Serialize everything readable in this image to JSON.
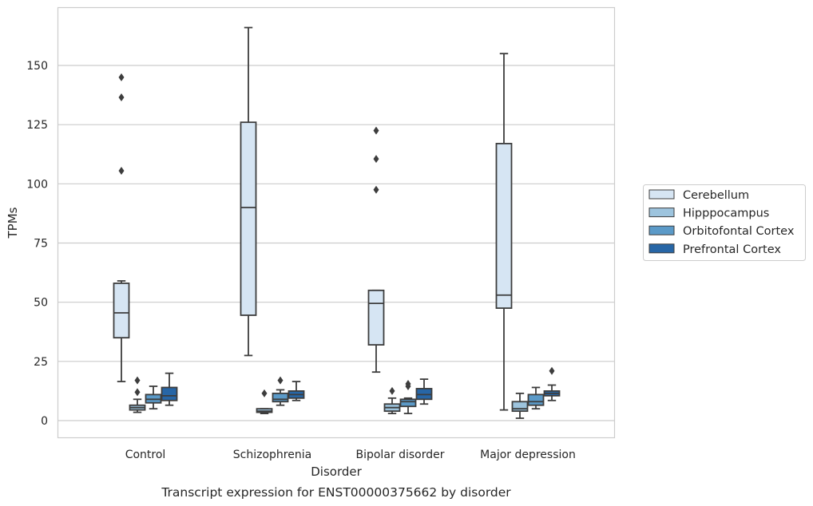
{
  "chart_data": {
    "type": "box",
    "caption": "Transcript expression for ENST00000375662 by disorder",
    "xlabel": "Disorder",
    "ylabel": "TPMs",
    "ylim": [
      -7,
      175
    ],
    "yticks": [
      0,
      25,
      50,
      75,
      100,
      125,
      150
    ],
    "grid": "horizontal",
    "legend_position": "right",
    "categories": [
      "Control",
      "Schizophrenia",
      "Bipolar disorder",
      "Major depression"
    ],
    "series": [
      {
        "name": "Cerebellum",
        "color": "#d6e5f3",
        "boxes": [
          {
            "whisker_low": 16.5,
            "q1": 35,
            "median": 45.5,
            "q3": 58,
            "whisker_high": 59,
            "outliers": [
              105.5,
              136.5,
              145
            ]
          },
          {
            "whisker_low": 27.5,
            "q1": 44.5,
            "median": 90,
            "q3": 126,
            "whisker_high": 166,
            "outliers": []
          },
          {
            "whisker_low": 20.5,
            "q1": 32,
            "median": 49.5,
            "q3": 55,
            "whisker_high": 55,
            "outliers": [
              97.5,
              110.5,
              122.5
            ]
          },
          {
            "whisker_low": 4.5,
            "q1": 47.5,
            "median": 53,
            "q3": 117,
            "whisker_high": 155,
            "outliers": []
          }
        ]
      },
      {
        "name": "Hipppocampus",
        "color": "#9dc4de",
        "boxes": [
          {
            "whisker_low": 3.5,
            "q1": 4.5,
            "median": 5.5,
            "q3": 6.5,
            "whisker_high": 9,
            "outliers": [
              12,
              17
            ]
          },
          {
            "whisker_low": 3,
            "q1": 3.5,
            "median": 4,
            "q3": 5,
            "whisker_high": 5,
            "outliers": [
              11.5
            ]
          },
          {
            "whisker_low": 3,
            "q1": 4,
            "median": 5.5,
            "q3": 7,
            "whisker_high": 9.5,
            "outliers": [
              12.5
            ]
          },
          {
            "whisker_low": 1,
            "q1": 4,
            "median": 5,
            "q3": 8,
            "whisker_high": 11.5,
            "outliers": []
          }
        ]
      },
      {
        "name": "Orbitofontal Cortex",
        "color": "#5b9ac8",
        "boxes": [
          {
            "whisker_low": 5,
            "q1": 7.5,
            "median": 9,
            "q3": 11,
            "whisker_high": 14.5,
            "outliers": []
          },
          {
            "whisker_low": 6.5,
            "q1": 8,
            "median": 9,
            "q3": 11.5,
            "whisker_high": 13,
            "outliers": [
              17
            ]
          },
          {
            "whisker_low": 3,
            "q1": 6,
            "median": 8,
            "q3": 9,
            "whisker_high": 9.5,
            "outliers": [
              14.5,
              15.5
            ]
          },
          {
            "whisker_low": 5,
            "q1": 6.5,
            "median": 8,
            "q3": 11,
            "whisker_high": 14,
            "outliers": []
          }
        ]
      },
      {
        "name": "Prefrontal Cortex",
        "color": "#2766a6",
        "boxes": [
          {
            "whisker_low": 6.5,
            "q1": 8.5,
            "median": 10.5,
            "q3": 14,
            "whisker_high": 20,
            "outliers": []
          },
          {
            "whisker_low": 8.5,
            "q1": 9.5,
            "median": 11,
            "q3": 12.5,
            "whisker_high": 16.5,
            "outliers": []
          },
          {
            "whisker_low": 7,
            "q1": 9,
            "median": 11,
            "q3": 13.5,
            "whisker_high": 17.5,
            "outliers": []
          },
          {
            "whisker_low": 8.5,
            "q1": 10.5,
            "median": 11.5,
            "q3": 12.5,
            "whisker_high": 15,
            "outliers": [
              21
            ]
          }
        ]
      }
    ]
  }
}
